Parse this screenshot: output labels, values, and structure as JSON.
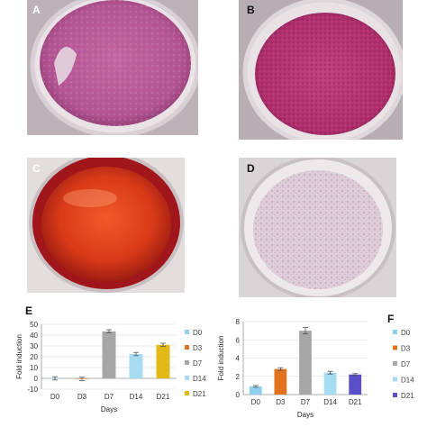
{
  "panels": {
    "A": {
      "letter": "A"
    },
    "B": {
      "letter": "B"
    },
    "C": {
      "letter": "C"
    },
    "D": {
      "letter": "D"
    },
    "E": {
      "letter": "E"
    },
    "F": {
      "letter": "F"
    }
  },
  "colors": {
    "D0": "#8fd0ee",
    "D3": "#e2721e",
    "D7": "#a7a7a7",
    "D14": "#a6dcf2",
    "D21_E": "#e2b818",
    "D21_F": "#5a4fc8"
  },
  "chart_data": [
    {
      "type": "bar",
      "categories": [
        "D0",
        "D3",
        "D7",
        "D14",
        "D21"
      ],
      "values": [
        0,
        -0.5,
        43.5,
        22.5,
        31
      ],
      "errors": [
        1.5,
        1.5,
        1.5,
        1.5,
        1.5
      ],
      "colors": [
        "#8fd0ee",
        "#e2721e",
        "#a7a7a7",
        "#a6dcf2",
        "#e2b818"
      ],
      "xlabel": "Days",
      "ylabel": "Fold induction",
      "ylim": [
        -10,
        50
      ],
      "yticks": [
        "-10",
        "0",
        "10",
        "20",
        "30",
        "40",
        "50"
      ],
      "grid": true,
      "legend": [
        "D0",
        "D3",
        "D7",
        "D14",
        "D21"
      ],
      "legend_position": "right"
    },
    {
      "type": "bar",
      "categories": [
        "D0",
        "D3",
        "D7",
        "D14",
        "D21"
      ],
      "values": [
        0.9,
        2.8,
        7.0,
        2.4,
        2.2
      ],
      "errors": [
        0.1,
        0.15,
        0.35,
        0.15,
        0.1
      ],
      "colors": [
        "#8fd0ee",
        "#e2721e",
        "#a7a7a7",
        "#a6dcf2",
        "#5a4fc8"
      ],
      "xlabel": "Days",
      "ylabel": "Fold induction",
      "ylim": [
        0,
        8
      ],
      "yticks": [
        "0",
        "2",
        "4",
        "6",
        "8"
      ],
      "grid": true,
      "legend": [
        "D0",
        "D3",
        "D7",
        "D14",
        "D21"
      ],
      "legend_position": "right"
    }
  ]
}
